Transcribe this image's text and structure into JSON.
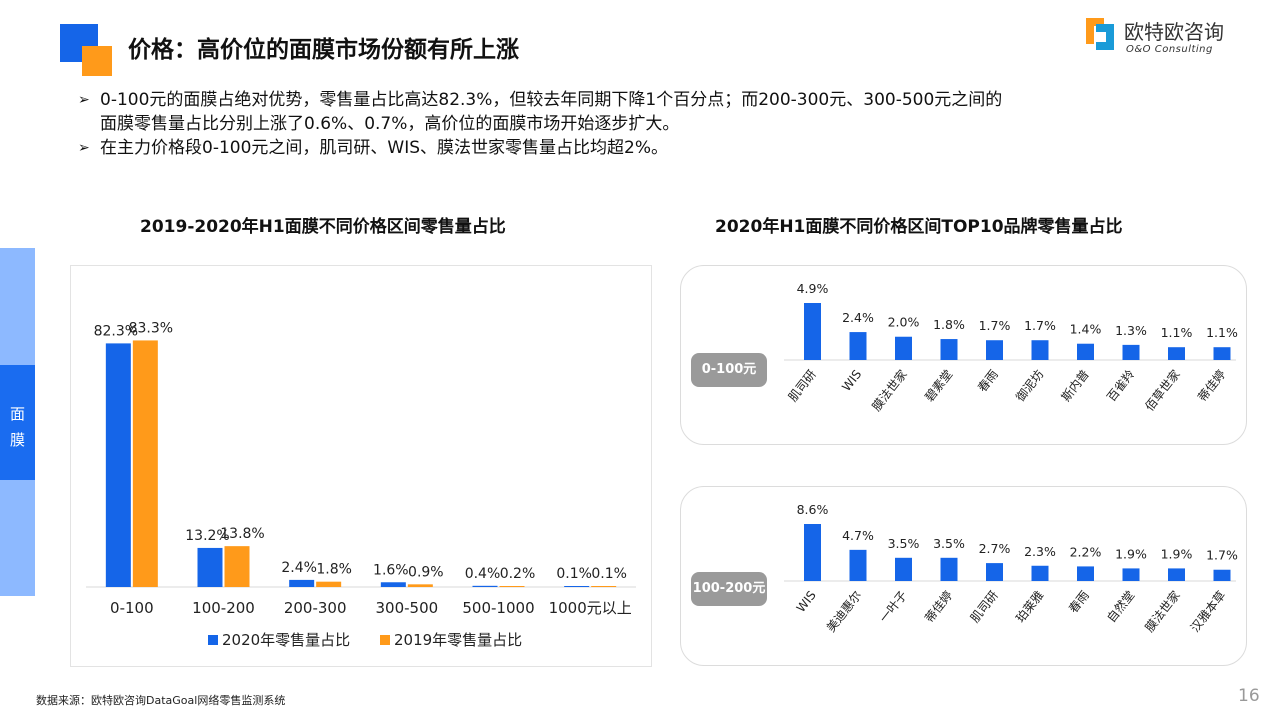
{
  "header": {
    "title": "价格：高价位的面膜市场份额有所上涨",
    "brand_cn": "欧特欧咨询",
    "brand_en": "O&O Consulting"
  },
  "bullets": {
    "b1_line1": "0-100元的面膜占绝对优势，零售量占比高达82.3%，但较去年同期下降1个百分点；而200-300元、300-500元之间的",
    "b1_line2": "面膜零售量占比分别上涨了0.6%、0.7%，高价位的面膜市场开始逐步扩大。",
    "b2": "在主力价格段0-100元之间，肌司研、WIS、膜法世家零售量占比均超2%。"
  },
  "side_tab": {
    "label_1": "面",
    "label_2": "膜"
  },
  "colors": {
    "blue": "#1565e8",
    "orange": "#ff9a1a",
    "pill": "#9a9a9a"
  },
  "chart_data": [
    {
      "type": "bar",
      "title": "2019-2020年H1面膜不同价格区间零售量占比",
      "categories": [
        "0-100",
        "100-200",
        "200-300",
        "300-500",
        "500-1000",
        "1000元以上"
      ],
      "series": [
        {
          "name": "2020年零售量占比",
          "values": [
            82.3,
            13.2,
            2.4,
            1.6,
            0.4,
            0.1
          ],
          "labels": [
            "82.3%",
            "13.2%",
            "2.4%",
            "1.6%",
            "0.4%",
            "0.1%"
          ]
        },
        {
          "name": "2019年零售量占比",
          "values": [
            83.3,
            13.8,
            1.8,
            0.9,
            0.2,
            0.1
          ],
          "labels": [
            "83.3%",
            "13.8%",
            "1.8%",
            "0.9%",
            "0.2%",
            "0.1%"
          ]
        }
      ],
      "ylim": [
        0,
        100
      ],
      "legend": "bottom"
    },
    {
      "type": "bar",
      "title": "2020年H1面膜不同价格区间TOP10品牌零售量占比",
      "group": "0-100元",
      "categories": [
        "肌司研",
        "WIS",
        "膜法世家",
        "碧素堂",
        "春雨",
        "御泥坊",
        "斯内普",
        "百雀羚",
        "佰草世家",
        "蒂佳婷"
      ],
      "values": [
        4.9,
        2.4,
        2.0,
        1.8,
        1.7,
        1.7,
        1.4,
        1.3,
        1.1,
        1.1
      ],
      "labels": [
        "4.9%",
        "2.4%",
        "2.0%",
        "1.8%",
        "1.7%",
        "1.7%",
        "1.4%",
        "1.3%",
        "1.1%",
        "1.1%"
      ]
    },
    {
      "type": "bar",
      "group": "100-200元",
      "categories": [
        "WIS",
        "美迪惠尔",
        "一叶子",
        "蒂佳婷",
        "肌司研",
        "珀莱雅",
        "春雨",
        "自然堂",
        "膜法世家",
        "汉雅本草"
      ],
      "values": [
        8.6,
        4.7,
        3.5,
        3.5,
        2.7,
        2.3,
        2.2,
        1.9,
        1.9,
        1.7
      ],
      "labels": [
        "8.6%",
        "4.7%",
        "3.5%",
        "3.5%",
        "2.7%",
        "2.3%",
        "2.2%",
        "1.9%",
        "1.9%",
        "1.7%"
      ]
    }
  ],
  "footer": {
    "source": "数据来源：欧特欧咨询DataGoal网络零售监测系统",
    "page_number": "16"
  }
}
